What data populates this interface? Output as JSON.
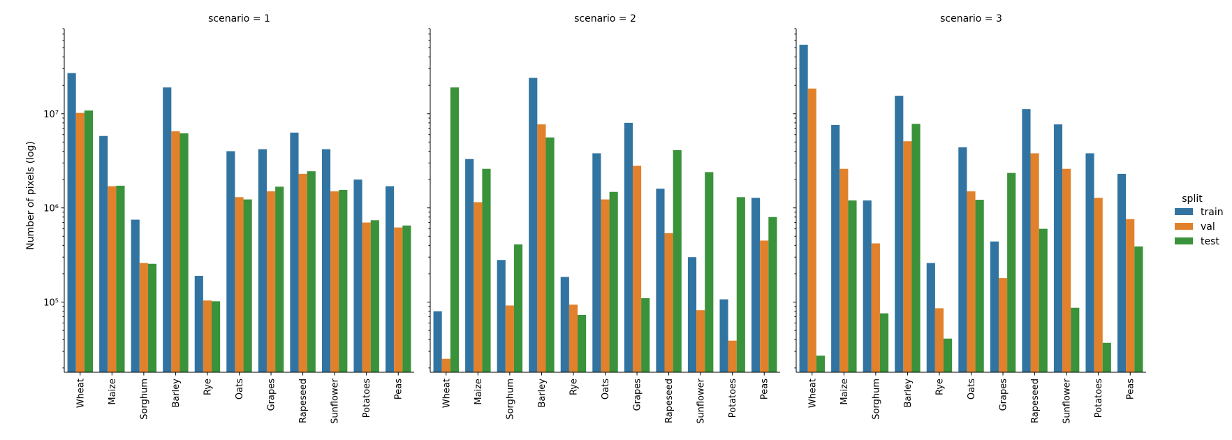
{
  "chart_data": {
    "type": "bar",
    "ylabel": "Number of pixels (log)",
    "yscale": "log",
    "ylim": [
      18000,
      80000000
    ],
    "y_tick_labels": [
      "10⁵",
      "10⁶",
      "10⁷"
    ],
    "y_tick_values": [
      100000,
      1000000,
      10000000
    ],
    "categories": [
      "Wheat",
      "Maize",
      "Sorghum",
      "Barley",
      "Rye",
      "Oats",
      "Grapes",
      "Rapeseed",
      "Sunflower",
      "Potatoes",
      "Peas"
    ],
    "legend": {
      "title": "split",
      "position": "right",
      "entries": [
        "train",
        "val",
        "test"
      ]
    },
    "colors": {
      "train": "#3274a1",
      "val": "#e1812c",
      "test": "#3a923a"
    },
    "panels": [
      {
        "title": "scenario = 1",
        "series": [
          {
            "name": "train",
            "values": [
              27000000,
              5800000,
              750000,
              19000000,
              190000,
              4000000,
              4200000,
              6300000,
              4200000,
              2000000,
              1700000
            ]
          },
          {
            "name": "val",
            "values": [
              10200000,
              1700000,
              260000,
              6500000,
              104000,
              1300000,
              1500000,
              2300000,
              1500000,
              700000,
              620000
            ]
          },
          {
            "name": "test",
            "values": [
              10800000,
              1720000,
              255000,
              6200000,
              102000,
              1230000,
              1680000,
              2450000,
              1550000,
              740000,
              650000
            ]
          }
        ]
      },
      {
        "title": "scenario = 2",
        "series": [
          {
            "name": "train",
            "values": [
              80000,
              3300000,
              280000,
              24000000,
              185000,
              3800000,
              8000000,
              1600000,
              300000,
              107000,
              1280000
            ]
          },
          {
            "name": "val",
            "values": [
              25000,
              1150000,
              92000,
              7700000,
              94000,
              1230000,
              2800000,
              540000,
              82000,
              39000,
              450000
            ]
          },
          {
            "name": "test",
            "values": [
              19000000,
              2600000,
              410000,
              5600000,
              73000,
              1480000,
              110000,
              4100000,
              2400000,
              1300000,
              800000
            ]
          }
        ]
      },
      {
        "title": "scenario = 3",
        "series": [
          {
            "name": "train",
            "values": [
              54000000,
              7600000,
              1200000,
              15500000,
              260000,
              4400000,
              440000,
              11200000,
              7700000,
              3800000,
              2300000
            ]
          },
          {
            "name": "val",
            "values": [
              18500000,
              2600000,
              420000,
              5100000,
              86000,
              1500000,
              180000,
              3800000,
              2600000,
              1280000,
              760000
            ]
          },
          {
            "name": "test",
            "values": [
              27000,
              1200000,
              76000,
              7800000,
              41000,
              1220000,
              2350000,
              600000,
              87000,
              37000,
              390000
            ]
          }
        ]
      }
    ]
  }
}
